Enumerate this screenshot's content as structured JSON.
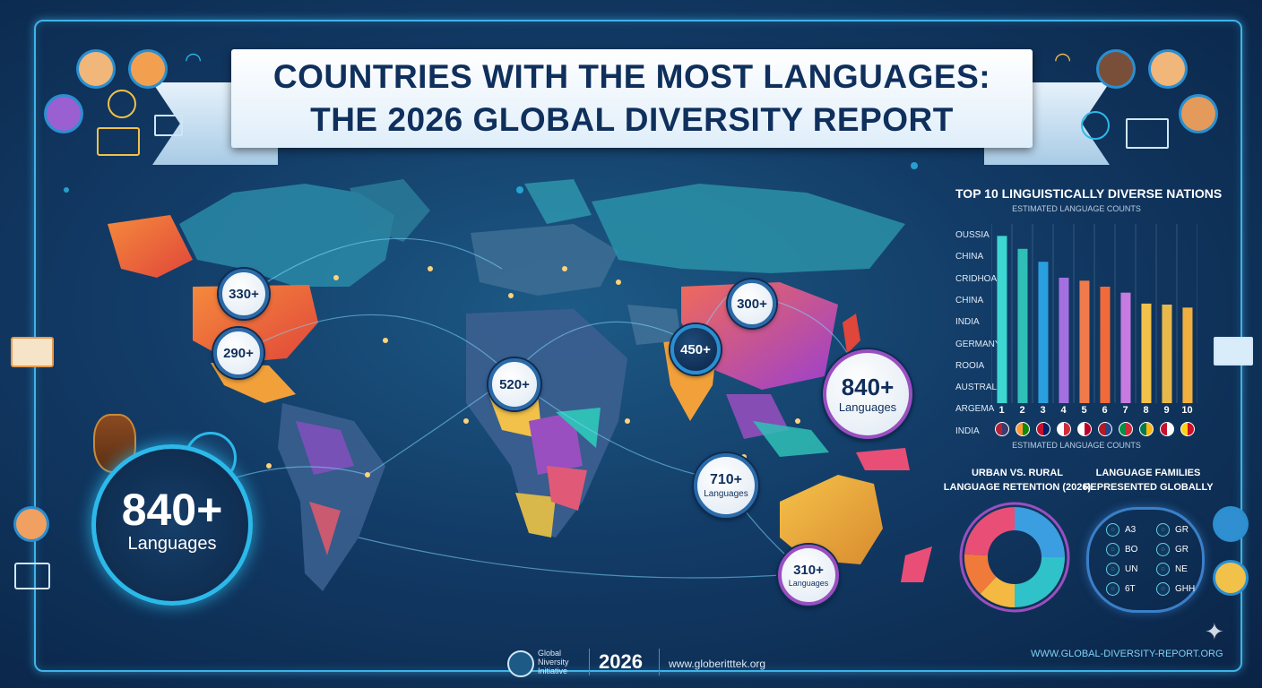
{
  "title": {
    "line1": "COUNTRIES WITH THE MOST LANGUAGES:",
    "line2": "THE 2026 GLOBAL DIVERSITY REPORT"
  },
  "map_callouts": [
    {
      "value": "330+",
      "unit": ""
    },
    {
      "value": "290+",
      "unit": ""
    },
    {
      "value": "520+",
      "unit": ""
    },
    {
      "value": "450+",
      "unit": ""
    },
    {
      "value": "300+",
      "unit": ""
    },
    {
      "value": "840+",
      "unit": "Languages"
    },
    {
      "value": "710+",
      "unit": "Languages"
    },
    {
      "value": "310+",
      "unit": "Languages"
    }
  ],
  "highlight": {
    "value": "840+",
    "unit": "Languages"
  },
  "chart_data": [
    {
      "type": "bar",
      "title": "TOP 10 LINGUISTICALLY DIVERSE NATIONS",
      "subtitle": "ESTIMATED LANGUAGE COUNTS",
      "xlabel": "ESTIMATED LANGUAGE COUNTS",
      "ylabel": "",
      "row_labels": [
        "OUSSIA",
        "CHINA",
        "CRIDHOA",
        "CHINA",
        "INDIA",
        "GERMANY",
        "ROOIA",
        "AUSTRALIA",
        "ARGEMA",
        "INDIA"
      ],
      "categories": [
        "1",
        "2",
        "3",
        "4",
        "5",
        "6",
        "7",
        "8",
        "9",
        "10"
      ],
      "values": [
        840,
        775,
        710,
        630,
        615,
        585,
        555,
        500,
        495,
        480
      ],
      "ylim": [
        0,
        900
      ],
      "grid": true,
      "colors": [
        "#3dd6d0",
        "#2fbfb6",
        "#2a9fe0",
        "#a46fe0",
        "#f07a4a",
        "#f06a3a",
        "#c77ae0",
        "#f2c14a",
        "#e9b84a",
        "#f0b040"
      ],
      "flag_colors": [
        [
          "#b22234",
          "#3c3b6e"
        ],
        [
          "#ff9933",
          "#138808"
        ],
        [
          "#c8102e",
          "#012169"
        ],
        [
          "#ffffff",
          "#cd2e3a"
        ],
        [
          "#ffffff",
          "#bc002d"
        ],
        [
          "#ae1c28",
          "#21468b"
        ],
        [
          "#009246",
          "#ce2b37"
        ],
        [
          "#007a4d",
          "#ffb612"
        ],
        [
          "#c8102e",
          "#ffffff"
        ],
        [
          "#fcd116",
          "#ce1126"
        ]
      ]
    },
    {
      "type": "pie",
      "title": "URBAN VS. RURAL LANGUAGE RETENTION (2026)",
      "title_line1": "URBAN VS. RURAL",
      "title_line2": "LANGUAGE RETENTION (2026)",
      "slices": [
        {
          "value": 25,
          "color": "#3a9ee0"
        },
        {
          "value": 25,
          "color": "#2fc2c8"
        },
        {
          "value": 12,
          "color": "#f4b942"
        },
        {
          "value": 14,
          "color": "#f07a3a"
        },
        {
          "value": 24,
          "color": "#e94e77"
        }
      ]
    }
  ],
  "families": {
    "title_line1": "LANGUAGE FAMILIES",
    "title_line2": "REPRESENTED GLOBALLY",
    "items": [
      {
        "code": "A3",
        "icon": "globe-icon"
      },
      {
        "code": "GR",
        "icon": "globe-icon"
      },
      {
        "code": "BO",
        "icon": "globe-icon"
      },
      {
        "code": "GR",
        "icon": "globe-icon"
      },
      {
        "code": "UN",
        "icon": "globe-icon"
      },
      {
        "code": "NE",
        "icon": "globe-icon"
      },
      {
        "code": "6T",
        "icon": "globe-icon"
      },
      {
        "code": "GHH",
        "icon": "globe-icon"
      }
    ]
  },
  "footer": {
    "org_line1": "Global",
    "org_line2": "Niversity",
    "org_line3": "Initiative",
    "year": "2026",
    "site_left": "www.globeritttek.org",
    "site_right": "WWW.GLOBAL-DIVERSITY-REPORT.ORG"
  },
  "colors": {
    "accent": "#3fb3e8",
    "background": "#123b66",
    "title_text": "#0f2f5c"
  }
}
